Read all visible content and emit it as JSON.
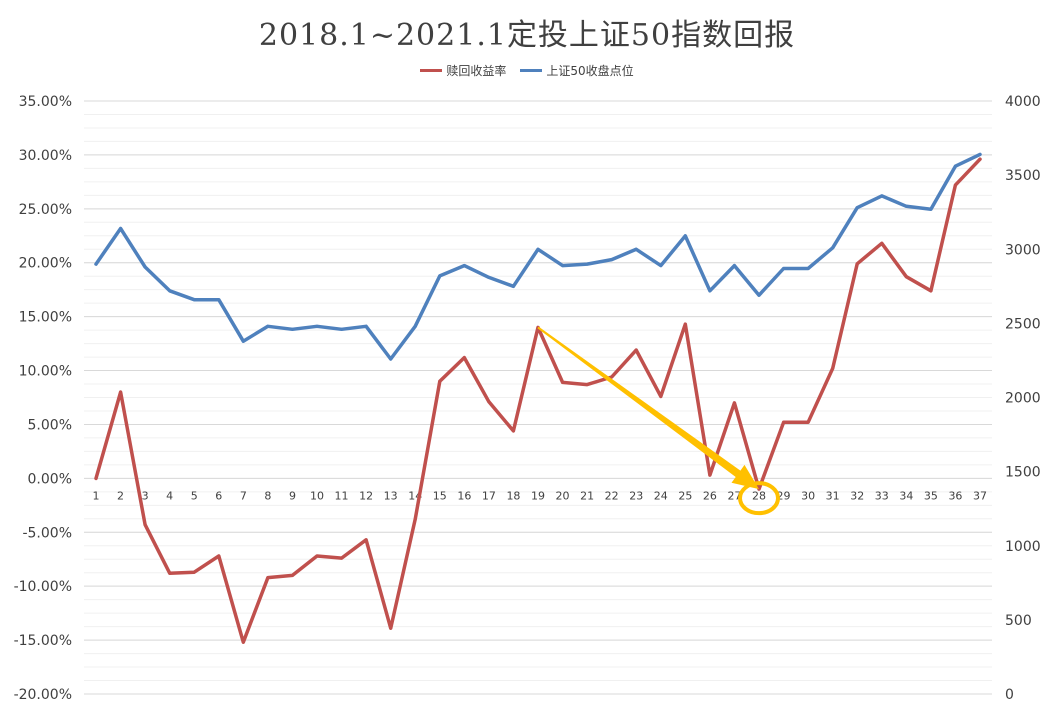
{
  "chart_data": {
    "type": "line",
    "title": "2018.1~2021.1定投上证50指数回报",
    "xlabel": "",
    "ylabel": "",
    "categories": [
      "1",
      "2",
      "3",
      "4",
      "5",
      "6",
      "7",
      "8",
      "9",
      "10",
      "11",
      "12",
      "13",
      "14",
      "15",
      "16",
      "17",
      "18",
      "19",
      "20",
      "21",
      "22",
      "23",
      "24",
      "25",
      "26",
      "27",
      "28",
      "29",
      "30",
      "31",
      "32",
      "33",
      "34",
      "35",
      "36",
      "37"
    ],
    "ylim_left": [
      -0.2,
      0.35
    ],
    "ylim_right": [
      0,
      4000
    ],
    "yticks_left": [
      "35.00%",
      "30.00%",
      "25.00%",
      "20.00%",
      "15.00%",
      "10.00%",
      "5.00%",
      "0.00%",
      "-5.00%",
      "-10.00%",
      "-15.00%",
      "-20.00%"
    ],
    "yticks_right": [
      "4000",
      "3500",
      "3000",
      "2500",
      "2000",
      "1500",
      "1000",
      "500",
      "0"
    ],
    "grid": true,
    "legend_position": "top-center",
    "series": [
      {
        "name": "赎回收益率",
        "axis": "left",
        "color": "#c0504d",
        "values": [
          0.0,
          0.08,
          -0.043,
          -0.088,
          -0.087,
          -0.072,
          -0.152,
          -0.092,
          -0.09,
          -0.072,
          -0.074,
          -0.057,
          -0.139,
          -0.038,
          0.09,
          0.112,
          0.071,
          0.044,
          0.14,
          0.089,
          0.087,
          0.094,
          0.119,
          0.076,
          0.143,
          0.003,
          0.07,
          -0.01,
          0.052,
          0.052,
          0.102,
          0.199,
          0.218,
          0.187,
          0.174,
          0.272,
          0.296
        ]
      },
      {
        "name": "上证50收盘点位",
        "axis": "right",
        "color": "#4f81bd",
        "values": [
          2900,
          3140,
          2880,
          2720,
          2660,
          2660,
          2380,
          2480,
          2460,
          2480,
          2460,
          2480,
          2260,
          2480,
          2820,
          2890,
          2810,
          2750,
          3000,
          2890,
          2900,
          2930,
          3000,
          2890,
          3090,
          2720,
          2890,
          2690,
          2870,
          2870,
          3010,
          3280,
          3360,
          3290,
          3270,
          3560,
          3640
        ]
      }
    ],
    "annotation": {
      "index": 27,
      "color": "#ffc000"
    }
  }
}
